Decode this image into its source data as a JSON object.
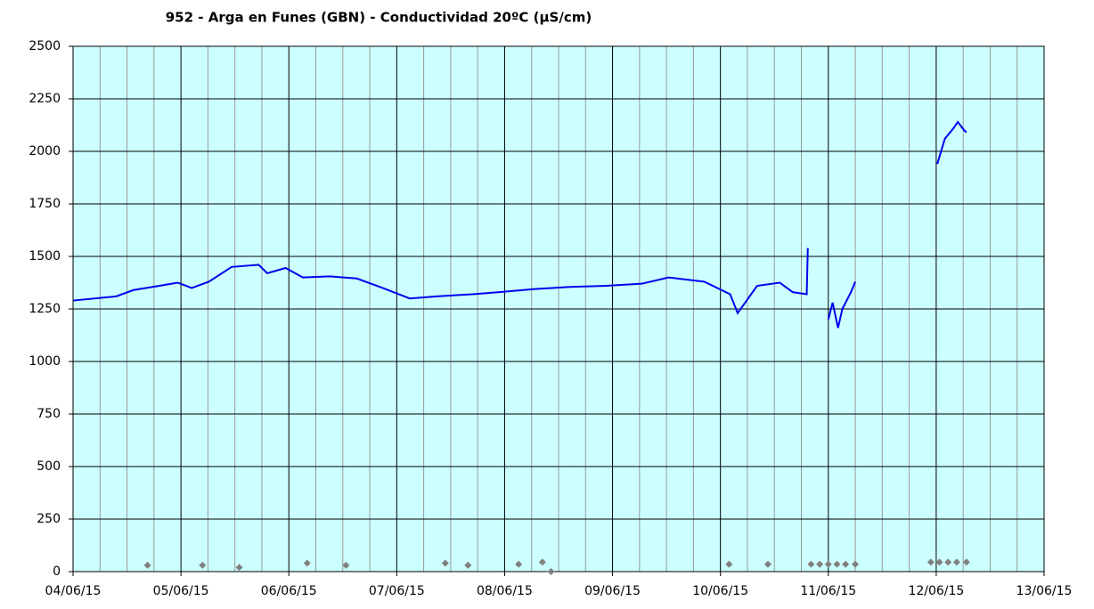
{
  "chart_data": {
    "type": "line",
    "title": "952 - Arga en Funes (GBN) - Conductividad 20ºC (µS/cm)",
    "xlim": [
      0,
      9
    ],
    "xticks": [
      {
        "value": 0,
        "label": "04/06/15"
      },
      {
        "value": 1,
        "label": "05/06/15"
      },
      {
        "value": 2,
        "label": "06/06/15"
      },
      {
        "value": 3,
        "label": "07/06/15"
      },
      {
        "value": 4,
        "label": "08/06/15"
      },
      {
        "value": 5,
        "label": "09/06/15"
      },
      {
        "value": 6,
        "label": "10/06/15"
      },
      {
        "value": 7,
        "label": "11/06/15"
      },
      {
        "value": 8,
        "label": "12/06/15"
      },
      {
        "value": 9,
        "label": "13/06/15"
      }
    ],
    "minor_xticks_per_tick": 4,
    "ylim": [
      0,
      2500
    ],
    "yticks": [
      0,
      250,
      500,
      750,
      1000,
      1250,
      1500,
      1750,
      2000,
      2250,
      2500
    ],
    "grid": true,
    "background": "#ccffff",
    "series": [
      {
        "color": "#0000ee",
        "marker": "none",
        "x": [
          0,
          0.4,
          0.56,
          0.8,
          0.97,
          1.1,
          1.26,
          1.47,
          1.72,
          1.8,
          1.97,
          2.13,
          2.38,
          2.63,
          2.87,
          3.12,
          3.37,
          3.7,
          3.95,
          4.28,
          4.61,
          4.94,
          5.27,
          5.52,
          5.85,
          6.09,
          6.16,
          6.34,
          6.55,
          6.67,
          6.8,
          6.81,
          6.9,
          7.0,
          7.04,
          7.09,
          7.13,
          7.21,
          7.25,
          7.6,
          8.01,
          8.08,
          8.16,
          8.2,
          8.26,
          8.28
        ],
        "values": [
          1290,
          1310,
          1340,
          1360,
          1375,
          1350,
          1380,
          1450,
          1460,
          1420,
          1445,
          1400,
          1405,
          1395,
          1350,
          1300,
          1310,
          1320,
          1330,
          1345,
          1355,
          1360,
          1370,
          1400,
          1380,
          1320,
          1230,
          1360,
          1375,
          1330,
          1320,
          1540,
          null,
          1200,
          1280,
          1160,
          1250,
          1330,
          1380,
          null,
          1940,
          2060,
          2110,
          2140,
          2100,
          2090
        ]
      },
      {
        "color": "#808080",
        "marker": "diamond",
        "x": [
          0.69,
          1.2,
          1.54,
          2.17,
          2.53,
          3.45,
          3.66,
          4.13,
          4.35,
          4.43,
          6.08,
          6.44,
          6.84,
          6.92,
          7.0,
          7.08,
          7.16,
          7.25,
          7.95,
          8.03,
          8.11,
          8.19,
          8.28
        ],
        "values": [
          30,
          30,
          20,
          40,
          30,
          40,
          30,
          35,
          45,
          0,
          35,
          35,
          35,
          35,
          35,
          35,
          35,
          35,
          45,
          45,
          45,
          45,
          45
        ]
      }
    ]
  }
}
